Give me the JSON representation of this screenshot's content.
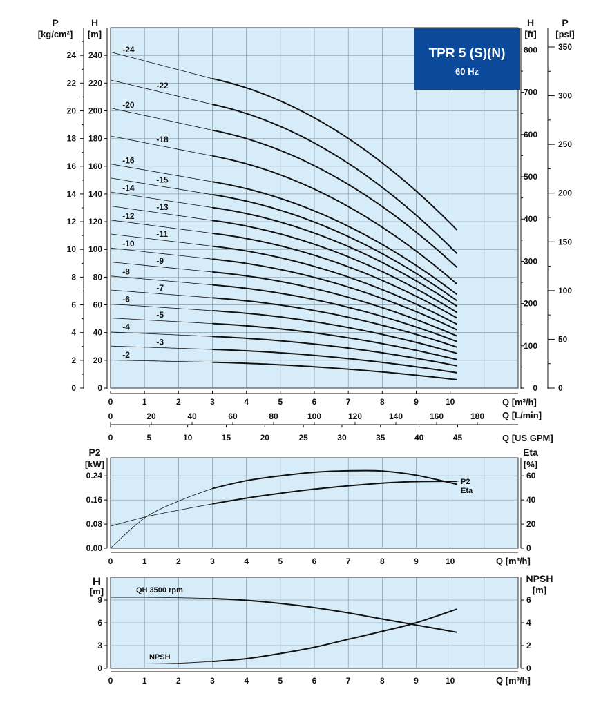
{
  "badge": {
    "title": "TPR 5 (S)(N)",
    "subtitle": "60 Hz",
    "color": "#0b4a9b"
  },
  "colors": {
    "plot_bg": "#d6ecf8",
    "grid": "#7a8a96",
    "curve": "#111111"
  },
  "chart_data": [
    {
      "id": "qh",
      "type": "line",
      "title": "",
      "units_left": [
        {
          "symbol": "P",
          "unit": "[kg/cm²]",
          "ticks": [
            0,
            2,
            4,
            6,
            8,
            10,
            12,
            14,
            16,
            18,
            20,
            22,
            24
          ]
        },
        {
          "symbol": "H",
          "unit": "[m]",
          "ticks": [
            0,
            20,
            40,
            60,
            80,
            100,
            120,
            140,
            160,
            180,
            200,
            220,
            240
          ]
        }
      ],
      "units_right": [
        {
          "symbol": "H",
          "unit": "[ft]",
          "ticks": [
            0,
            100,
            200,
            300,
            400,
            500,
            600,
            700,
            800
          ]
        },
        {
          "symbol": "P",
          "unit": "[psi]",
          "ticks": [
            0,
            50,
            100,
            150,
            200,
            250,
            300,
            350
          ]
        }
      ],
      "x_axes": [
        {
          "label": "Q [m³/h]",
          "ticks": [
            0,
            1,
            2,
            3,
            4,
            5,
            6,
            7,
            8,
            9,
            10
          ]
        },
        {
          "label": "Q [L/min]",
          "ticks": [
            0,
            20,
            40,
            60,
            80,
            100,
            120,
            140,
            160,
            180
          ]
        },
        {
          "label": "Q [US GPM]",
          "ticks": [
            0,
            5,
            10,
            15,
            20,
            25,
            30,
            35,
            40,
            45
          ]
        }
      ],
      "xlim": [
        0,
        12
      ],
      "ylim": [
        0,
        260
      ],
      "grid": true,
      "series": [
        {
          "name": "-2",
          "h0": 20.2,
          "h3": 18.6,
          "hend": 6.0
        },
        {
          "name": "-3",
          "h0": 30.3,
          "h3": 27.9,
          "hend": 11.0
        },
        {
          "name": "-4",
          "h0": 40.4,
          "h3": 37.2,
          "hend": 16.0
        },
        {
          "name": "-5",
          "h0": 50.5,
          "h3": 46.5,
          "hend": 20.5
        },
        {
          "name": "-6",
          "h0": 60.6,
          "h3": 55.8,
          "hend": 25.0
        },
        {
          "name": "-7",
          "h0": 70.7,
          "h3": 65.1,
          "hend": 29.5
        },
        {
          "name": "-8",
          "h0": 80.8,
          "h3": 74.4,
          "hend": 33.5
        },
        {
          "name": "-9",
          "h0": 90.9,
          "h3": 83.7,
          "hend": 37.5
        },
        {
          "name": "-10",
          "h0": 101.0,
          "h3": 93.0,
          "hend": 42.0
        },
        {
          "name": "-11",
          "h0": 111.1,
          "h3": 102.3,
          "hend": 46.0
        },
        {
          "name": "-12",
          "h0": 121.2,
          "h3": 111.6,
          "hend": 50.5
        },
        {
          "name": "-13",
          "h0": 131.3,
          "h3": 120.9,
          "hend": 54.5
        },
        {
          "name": "-14",
          "h0": 141.4,
          "h3": 130.2,
          "hend": 59.0
        },
        {
          "name": "-15",
          "h0": 151.5,
          "h3": 139.5,
          "hend": 63.0
        },
        {
          "name": "-16",
          "h0": 161.6,
          "h3": 148.8,
          "hend": 67.5
        },
        {
          "name": "-18",
          "h0": 181.8,
          "h3": 167.4,
          "hend": 75.0
        },
        {
          "name": "-20",
          "h0": 202.0,
          "h3": 186.0,
          "hend": 87.0
        },
        {
          "name": "-22",
          "h0": 222.2,
          "h3": 204.6,
          "hend": 97.0
        },
        {
          "name": "-24",
          "h0": 242.4,
          "h3": 223.2,
          "hend": 114.0
        }
      ],
      "q_end": 10.2
    },
    {
      "id": "p2eta",
      "type": "line",
      "y_left": {
        "symbol": "P2",
        "unit": "[kW]",
        "ticks": [
          "0.00",
          "0.08",
          "0.16",
          "0.24"
        ]
      },
      "y_right": {
        "symbol": "Eta",
        "unit": "[%]",
        "ticks": [
          0,
          20,
          40,
          60
        ]
      },
      "x_axis": {
        "label": "Q [m³/h]",
        "ticks": [
          0,
          1,
          2,
          3,
          4,
          5,
          6,
          7,
          8,
          9,
          10
        ]
      },
      "xlim": [
        0,
        12
      ],
      "ylim_left": [
        0,
        0.3
      ],
      "ylim_right": [
        0,
        75
      ],
      "series": [
        {
          "name": "P2",
          "axis": "left",
          "x": [
            0,
            1,
            2,
            3,
            4,
            5,
            6,
            7,
            8,
            9,
            10.2
          ],
          "y": [
            0.073,
            0.103,
            0.126,
            0.147,
            0.166,
            0.182,
            0.196,
            0.207,
            0.216,
            0.221,
            0.222
          ]
        },
        {
          "name": "Eta",
          "axis": "right",
          "x": [
            0,
            1,
            2,
            3,
            4,
            5,
            6,
            7,
            8,
            9,
            10.2
          ],
          "y": [
            0,
            25,
            39,
            49.5,
            56,
            60,
            63,
            64.2,
            64,
            60.5,
            53
          ]
        }
      ]
    },
    {
      "id": "npsh",
      "type": "line",
      "y_left": {
        "symbol": "H",
        "unit": "[m]",
        "ticks": [
          0,
          3,
          6,
          9
        ]
      },
      "y_right": {
        "symbol": "NPSH",
        "unit": "[m]",
        "ticks": [
          0,
          2,
          4,
          6
        ]
      },
      "x_axis": {
        "label": "Q [m³/h]",
        "ticks": [
          0,
          1,
          2,
          3,
          4,
          5,
          6,
          7,
          8,
          9,
          10
        ]
      },
      "xlim": [
        0,
        12
      ],
      "ylim_left": [
        0,
        12
      ],
      "ylim_right": [
        0,
        8
      ],
      "series": [
        {
          "name": "QH 3500 rpm",
          "axis": "left",
          "x": [
            0,
            1,
            2,
            3,
            4,
            5,
            6,
            7,
            8,
            9,
            10.2
          ],
          "y": [
            9.35,
            9.35,
            9.3,
            9.2,
            8.95,
            8.55,
            8.0,
            7.3,
            6.5,
            5.7,
            4.75
          ]
        },
        {
          "name": "NPSH",
          "axis": "right",
          "x": [
            0,
            1,
            2,
            3,
            4,
            5,
            6,
            7,
            8,
            9,
            10.2
          ],
          "y": [
            0.4,
            0.4,
            0.45,
            0.6,
            0.85,
            1.3,
            1.85,
            2.55,
            3.25,
            4.0,
            5.2
          ]
        }
      ]
    }
  ]
}
